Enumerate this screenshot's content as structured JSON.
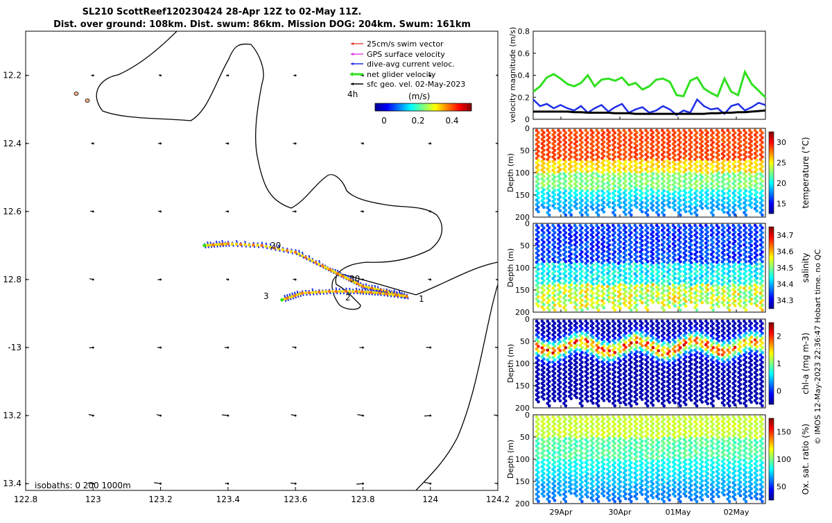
{
  "title_line1": "SL210 ScottReef120230424 28-Apr 12Z to 02-May 11Z.",
  "title_line2": "Dist. over ground: 108km. Dist. swum: 86km. Mission DOG: 204km. Swum: 161km",
  "credit": "© IMOS 12-May-2023 22:36:47 Hobart time. no QC",
  "isobaths_text": "isobaths: 0   200  1000m",
  "legend": {
    "swim": "25cm/s swim vector",
    "gps": "GPS surface velocity",
    "dive": "dive-avg current veloc.",
    "net": "net glider velocity",
    "sfc": "sfc geo. vel. 02-May-2023",
    "time_label": "4h",
    "colorbar_units": "(m/s)",
    "colorbar_ticks": [
      "0",
      "0.2",
      "0.4"
    ],
    "colors": {
      "swim": "#e0281e",
      "gps": "#e020e0",
      "dive": "#1e2ee6",
      "net": "#30e020",
      "sfc": "#000000"
    }
  },
  "map_labels": [
    "20",
    "30",
    "1",
    "2",
    "3"
  ],
  "chart_data": [
    {
      "type": "map",
      "xlim": [
        122.8,
        124.2
      ],
      "ylim": [
        -13.42,
        -12.07
      ],
      "x_ticks": [
        122.8,
        123,
        123.2,
        123.4,
        123.6,
        123.8,
        124,
        124.2
      ],
      "x_tick_labels": [
        "122.8",
        "123",
        "123.2",
        "123.4",
        "123.6",
        "123.8",
        "124",
        "124.2"
      ],
      "y_ticks": [
        -12.2,
        -12.4,
        -12.6,
        -12.8,
        -13,
        -13.2,
        -13.4
      ],
      "y_tick_labels": [
        "12.2",
        "12.4",
        "12.6",
        "12.8",
        "-13",
        "13.2",
        "13.4"
      ],
      "track": [
        [
          123.33,
          -12.7
        ],
        [
          123.4,
          -12.695
        ],
        [
          123.5,
          -12.7
        ],
        [
          123.6,
          -12.72
        ],
        [
          123.68,
          -12.76
        ],
        [
          123.74,
          -12.79
        ],
        [
          123.8,
          -12.82
        ],
        [
          123.87,
          -12.835
        ],
        [
          123.93,
          -12.85
        ],
        [
          123.85,
          -12.84
        ],
        [
          123.78,
          -12.835
        ],
        [
          123.7,
          -12.835
        ],
        [
          123.62,
          -12.84
        ],
        [
          123.56,
          -12.86
        ]
      ]
    },
    {
      "type": "line",
      "ylabel": "velocity magnitude (m/s)",
      "ylim": [
        0,
        0.8
      ],
      "y_ticks": [
        "0",
        "0.2",
        "0.4",
        "0.6",
        "0.8"
      ],
      "series": [
        {
          "name": "net glider velocity",
          "values": [
            0.25,
            0.3,
            0.38,
            0.41,
            0.37,
            0.32,
            0.3,
            0.33,
            0.4,
            0.3,
            0.36,
            0.37,
            0.35,
            0.38,
            0.31,
            0.33,
            0.27,
            0.3,
            0.36,
            0.37,
            0.34,
            0.22,
            0.21,
            0.35,
            0.38,
            0.28,
            0.24,
            0.21,
            0.37,
            0.25,
            0.22,
            0.43,
            0.32,
            0.26,
            0.2
          ]
        },
        {
          "name": "dive-avg current veloc.",
          "values": [
            0.18,
            0.12,
            0.14,
            0.1,
            0.13,
            0.1,
            0.08,
            0.12,
            0.06,
            0.1,
            0.13,
            0.07,
            0.11,
            0.14,
            0.06,
            0.09,
            0.11,
            0.06,
            0.08,
            0.12,
            0.09,
            0.04,
            0.08,
            0.06,
            0.18,
            0.12,
            0.09,
            0.1,
            0.05,
            0.12,
            0.14,
            0.08,
            0.11,
            0.15,
            0.13
          ]
        },
        {
          "name": "sfc geo. vel.",
          "values": [
            0.07,
            0.07,
            0.07,
            0.07,
            0.07,
            0.07,
            0.065,
            0.065,
            0.06,
            0.06,
            0.06,
            0.06,
            0.055,
            0.055,
            0.055,
            0.05,
            0.05,
            0.05,
            0.05,
            0.05,
            0.05,
            0.05,
            0.05,
            0.05,
            0.05,
            0.05,
            0.055,
            0.055,
            0.06,
            0.06,
            0.065,
            0.065,
            0.07,
            0.075,
            0.08
          ]
        }
      ]
    },
    {
      "type": "scatter",
      "ylabel": "Depth (m)",
      "variables": [
        {
          "label": "temperature (°C)",
          "cbar_ticks": [
            "15",
            "20",
            "25",
            "30"
          ]
        },
        {
          "label": "salinity",
          "cbar_ticks": [
            "34.3",
            "34.4",
            "34.5",
            "34.6",
            "34.7"
          ]
        },
        {
          "label": "chl-a (mg m-3)",
          "cbar_ticks": [
            "0",
            "1",
            "2"
          ]
        },
        {
          "label": "Ox. sat. ratio (%)",
          "cbar_ticks": [
            "50",
            "100",
            "150"
          ]
        }
      ],
      "depth_ticks": [
        "0",
        "50",
        "100",
        "150",
        "200"
      ],
      "x_tick_labels": [
        "29Apr",
        "30Apr",
        "01May",
        "02May"
      ]
    }
  ]
}
